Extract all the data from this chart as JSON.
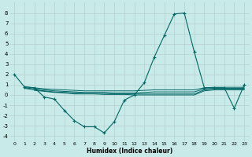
{
  "xlabel": "Humidex (Indice chaleur)",
  "background_color": "#c8eae8",
  "grid_color": "#b0c8c8",
  "line_color": "#006666",
  "xlim": [
    -0.5,
    23.5
  ],
  "ylim": [
    -4.5,
    9.0
  ],
  "xticks": [
    0,
    1,
    2,
    3,
    4,
    5,
    6,
    7,
    8,
    9,
    10,
    11,
    12,
    13,
    14,
    15,
    16,
    17,
    18,
    19,
    20,
    21,
    22,
    23
  ],
  "yticks": [
    -4,
    -3,
    -2,
    -1,
    0,
    1,
    2,
    3,
    4,
    5,
    6,
    7,
    8
  ],
  "main_x": [
    0,
    1,
    2,
    3,
    4,
    5,
    6,
    7,
    8,
    9,
    10,
    11,
    12,
    13,
    14,
    15,
    16,
    17,
    18,
    19,
    20,
    21,
    22,
    23
  ],
  "main_y": [
    2.0,
    0.8,
    0.7,
    -0.2,
    -0.4,
    -1.5,
    -2.5,
    -3.1,
    -3.1,
    -3.7,
    -2.6,
    -0.5,
    0.0,
    1.2,
    3.7,
    5.8,
    7.9,
    8.0,
    4.2,
    0.7,
    0.7,
    0.7,
    -1.3,
    1.0
  ],
  "flat_line1_x": [
    1,
    2,
    3,
    4,
    5,
    6,
    7,
    8,
    9,
    10,
    11,
    12,
    13,
    14,
    15,
    16,
    17,
    18,
    19,
    20,
    21,
    22,
    23
  ],
  "flat_line1_y": [
    0.8,
    0.7,
    0.6,
    0.55,
    0.5,
    0.45,
    0.4,
    0.4,
    0.4,
    0.4,
    0.4,
    0.4,
    0.45,
    0.5,
    0.5,
    0.5,
    0.5,
    0.5,
    0.7,
    0.75,
    0.75,
    0.75,
    0.75
  ],
  "flat_line2_x": [
    1,
    2,
    3,
    4,
    5,
    6,
    7,
    8,
    9,
    10,
    11,
    12,
    13,
    14,
    15,
    16,
    17,
    18,
    19,
    20,
    21,
    22,
    23
  ],
  "flat_line2_y": [
    0.7,
    0.6,
    0.5,
    0.4,
    0.35,
    0.3,
    0.25,
    0.25,
    0.25,
    0.2,
    0.2,
    0.2,
    0.25,
    0.3,
    0.3,
    0.3,
    0.3,
    0.3,
    0.6,
    0.65,
    0.65,
    0.65,
    0.65
  ],
  "flat_line3_x": [
    1,
    2,
    3,
    4,
    5,
    6,
    7,
    8,
    9,
    10,
    11,
    12,
    13,
    14,
    15,
    16,
    17,
    18,
    19,
    20,
    21,
    22,
    23
  ],
  "flat_line3_y": [
    0.65,
    0.5,
    0.4,
    0.3,
    0.25,
    0.2,
    0.15,
    0.15,
    0.15,
    0.1,
    0.1,
    0.1,
    0.1,
    0.1,
    0.1,
    0.1,
    0.1,
    0.1,
    0.5,
    0.55,
    0.55,
    0.55,
    0.55
  ],
  "flat_line4_x": [
    2,
    3,
    4,
    5,
    6,
    7,
    8,
    9,
    10,
    11,
    12,
    13,
    14,
    15,
    16,
    17,
    18,
    19,
    20,
    21,
    22,
    23
  ],
  "flat_line4_y": [
    0.45,
    0.35,
    0.25,
    0.2,
    0.1,
    0.1,
    0.1,
    0.05,
    0.05,
    0.05,
    0.0,
    0.0,
    0.0,
    0.0,
    0.0,
    0.0,
    0.0,
    0.4,
    0.5,
    0.5,
    0.5,
    0.5
  ]
}
